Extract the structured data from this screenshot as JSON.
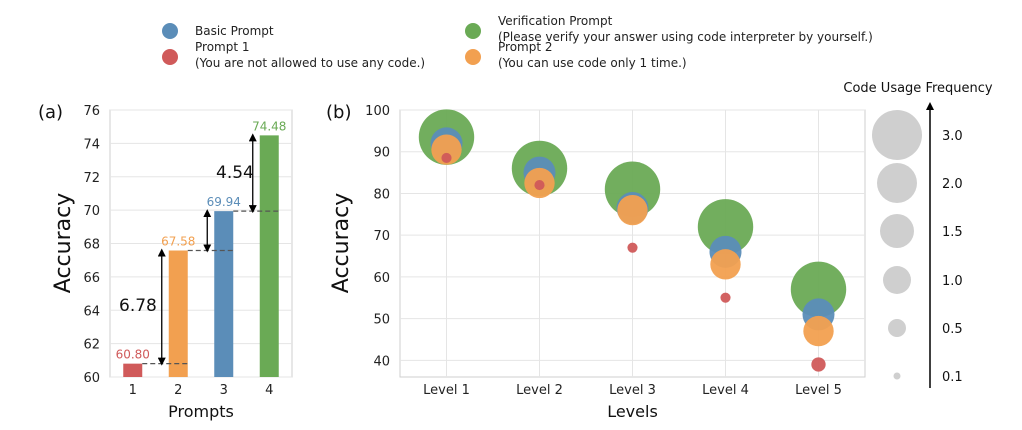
{
  "legend": [
    {
      "label": "Basic Prompt",
      "note": "",
      "color": "#5b8db8"
    },
    {
      "label": "Prompt 1",
      "note": "(You are not allowed to use any code.)",
      "color": "#d05a5a"
    },
    {
      "label": "Verification Prompt",
      "note": "(Please verify your answer using code interpreter by yourself.)",
      "color": "#6aaa55"
    },
    {
      "label": "Prompt 2",
      "note": "(You can use code only 1 time.)",
      "color": "#f2a050"
    }
  ],
  "size_legend": {
    "title": "Code Usage Frequency",
    "values": [
      "3.0",
      "2.0",
      "1.5",
      "1.0",
      "0.5",
      "0.1"
    ],
    "color": "#cfcfcf"
  },
  "chart_data": [
    {
      "type": "bar",
      "panel_label": "(a)",
      "categories": [
        "1",
        "2",
        "3",
        "4"
      ],
      "values": [
        60.8,
        67.58,
        69.94,
        74.48
      ],
      "value_labels": [
        "60.80",
        "67.58",
        "69.94",
        "74.48"
      ],
      "colors": [
        "#d05a5a",
        "#f2a050",
        "#5b8db8",
        "#6aaa55"
      ],
      "xlabel": "Prompts",
      "ylabel": "Accuracy",
      "ylim": [
        60,
        76
      ],
      "yticks": [
        "60",
        "62",
        "64",
        "66",
        "68",
        "70",
        "72",
        "74",
        "76"
      ],
      "grid": true,
      "annotations": [
        {
          "text": "6.78",
          "from": 60.8,
          "to": 67.58
        },
        {
          "text": "4.54",
          "from": 69.94,
          "to": 74.48
        }
      ]
    },
    {
      "type": "scatter",
      "panel_label": "(b)",
      "categories": [
        "Level 1",
        "Level 2",
        "Level 3",
        "Level 4",
        "Level 5"
      ],
      "xlabel": "Levels",
      "ylabel": "Accuracy",
      "ylim": [
        36,
        100
      ],
      "yticks": [
        "40",
        "50",
        "60",
        "70",
        "80",
        "90",
        "100"
      ],
      "grid": true,
      "series": [
        {
          "name": "Verification Prompt",
          "color": "#6aaa55",
          "values": [
            93.5,
            86.0,
            81.0,
            72.0,
            57.0
          ],
          "sizes": [
            3.0,
            3.0,
            3.0,
            3.0,
            3.0
          ]
        },
        {
          "name": "Basic Prompt",
          "color": "#5b8db8",
          "values": [
            92.0,
            85.0,
            76.5,
            66.0,
            51.0
          ],
          "sizes": [
            1.0,
            1.0,
            1.0,
            1.0,
            1.0
          ]
        },
        {
          "name": "Prompt 2",
          "color": "#f2a050",
          "values": [
            90.5,
            82.5,
            76.0,
            63.0,
            47.0
          ],
          "sizes": [
            0.9,
            0.9,
            0.9,
            0.9,
            0.9
          ]
        },
        {
          "name": "Prompt 1",
          "color": "#d05a5a",
          "values": [
            88.5,
            82.0,
            67.0,
            55.0,
            39.0
          ],
          "sizes": [
            0.1,
            0.1,
            0.1,
            0.1,
            0.2
          ]
        }
      ]
    }
  ]
}
